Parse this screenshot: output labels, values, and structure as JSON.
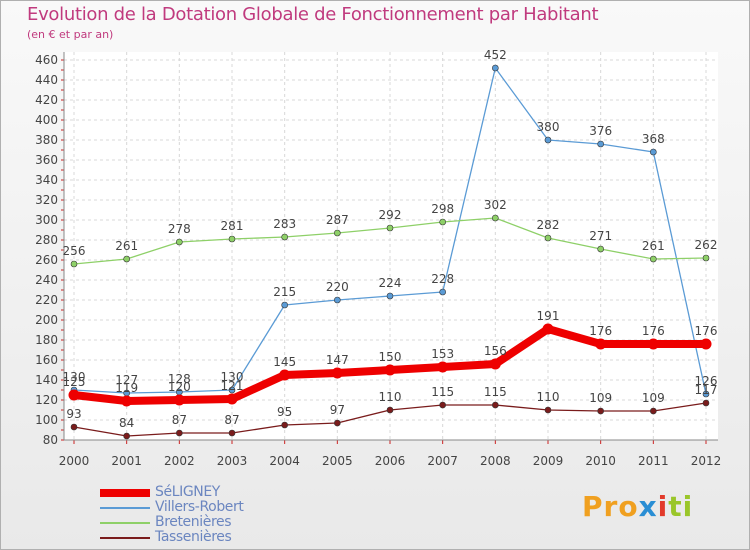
{
  "chart_data": {
    "type": "line",
    "title": "Evolution de la Dotation Globale de Fonctionnement par Habitant",
    "subtitle": "(en € et par an)",
    "x": [
      "2000",
      "2001",
      "2002",
      "2003",
      "2004",
      "2005",
      "2006",
      "2007",
      "2008",
      "2009",
      "2010",
      "2011",
      "2012"
    ],
    "ylim": [
      80,
      460
    ],
    "yticks": [
      80,
      100,
      120,
      140,
      160,
      180,
      200,
      220,
      240,
      260,
      280,
      300,
      320,
      340,
      360,
      380,
      400,
      420,
      440,
      460
    ],
    "series": [
      {
        "name": "Villers-Robert",
        "color": "#5b9bd5",
        "values": [
          130,
          127,
          128,
          130,
          215,
          220,
          224,
          228,
          452,
          380,
          376,
          368,
          126
        ]
      },
      {
        "name": "Bretenières",
        "color": "#8ed068",
        "values": [
          256,
          261,
          278,
          281,
          283,
          287,
          292,
          298,
          302,
          282,
          271,
          261,
          262
        ]
      },
      {
        "name": "Tassenières",
        "color": "#7a1c1c",
        "values": [
          93,
          84,
          87,
          87,
          95,
          97,
          110,
          115,
          115,
          110,
          109,
          109,
          117
        ]
      },
      {
        "name": "SéLIGNEY",
        "color": "#ee0000",
        "values": [
          125,
          119,
          120,
          121,
          145,
          147,
          150,
          153,
          156,
          191,
          176,
          176,
          176
        ]
      }
    ],
    "legend": [
      "SéLIGNEY",
      "Villers-Robert",
      "Bretenières",
      "Tassenières"
    ]
  },
  "legend_items": [
    {
      "label": "SéLIGNEY",
      "color": "#ee0000"
    },
    {
      "label": "Villers-Robert",
      "color": "#5b9bd5"
    },
    {
      "label": "Bretenières",
      "color": "#8ed068"
    },
    {
      "label": "Tassenières",
      "color": "#7a1c1c"
    }
  ],
  "logo": [
    "Pro",
    "x",
    "i",
    "ti"
  ]
}
